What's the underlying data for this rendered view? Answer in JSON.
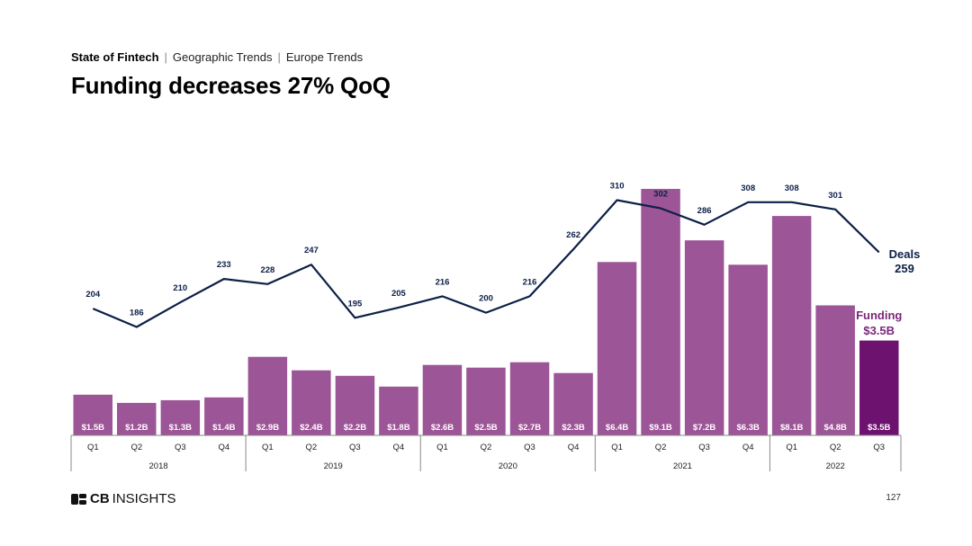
{
  "breadcrumb": {
    "items": [
      "State of Fintech",
      "Geographic Trends",
      "Europe Trends"
    ],
    "separator": "|"
  },
  "title": "Funding decreases 27% QoQ",
  "logo_text": {
    "cb": "CB",
    "insights": "INSIGHTS"
  },
  "page_number": "127",
  "colors": {
    "bar": "#9c5597",
    "bar_highlight": "#6e1270",
    "line": "#0c1f47",
    "funding_label": "#7b2779"
  },
  "chart_data": {
    "type": "bar",
    "categories": [
      "Q1",
      "Q2",
      "Q3",
      "Q4",
      "Q1",
      "Q2",
      "Q3",
      "Q4",
      "Q1",
      "Q2",
      "Q3",
      "Q4",
      "Q1",
      "Q2",
      "Q3",
      "Q4",
      "Q1",
      "Q2",
      "Q3"
    ],
    "years": [
      {
        "label": "2018",
        "count": 4
      },
      {
        "label": "2019",
        "count": 4
      },
      {
        "label": "2020",
        "count": 4
      },
      {
        "label": "2021",
        "count": 4
      },
      {
        "label": "2022",
        "count": 3
      }
    ],
    "series": [
      {
        "name": "Funding",
        "type": "bar",
        "unit": "$B",
        "values": [
          1.5,
          1.2,
          1.3,
          1.4,
          2.9,
          2.4,
          2.2,
          1.8,
          2.6,
          2.5,
          2.7,
          2.3,
          6.4,
          9.1,
          7.2,
          6.3,
          8.1,
          4.8,
          3.5
        ],
        "labels": [
          "$1.5B",
          "$1.2B",
          "$1.3B",
          "$1.4B",
          "$2.9B",
          "$2.4B",
          "$2.2B",
          "$1.8B",
          "$2.6B",
          "$2.5B",
          "$2.7B",
          "$2.3B",
          "$6.4B",
          "$9.1B",
          "$7.2B",
          "$6.3B",
          "$8.1B",
          "$4.8B",
          "$3.5B"
        ],
        "end_label": "Funding",
        "end_value_label": "$3.5B"
      },
      {
        "name": "Deals",
        "type": "line",
        "values": [
          204,
          186,
          210,
          233,
          228,
          247,
          195,
          205,
          216,
          200,
          216,
          262,
          310,
          302,
          286,
          308,
          308,
          301,
          259
        ],
        "end_label": "Deals",
        "end_value_label": "259"
      }
    ],
    "highlight_index": 18
  }
}
